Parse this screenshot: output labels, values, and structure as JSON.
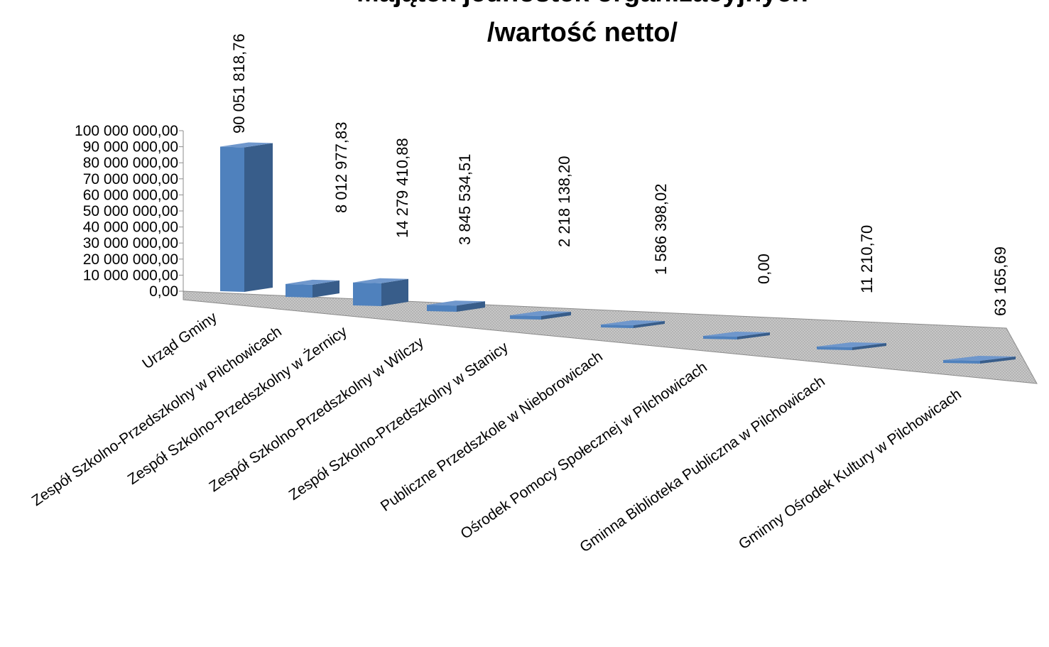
{
  "chart_data": {
    "type": "bar",
    "title_lines": [
      "Majątek jednostek organizacyjnych",
      "/wartość netto/"
    ],
    "xlabel": "",
    "ylabel": "",
    "ylim": [
      0,
      100000000
    ],
    "yticks": [
      "0,00",
      "10 000 000,00",
      "20 000 000,00",
      "30 000 000,00",
      "40 000 000,00",
      "50 000 000,00",
      "60 000 000,00",
      "70 000 000,00",
      "80 000 000,00",
      "90 000 000,00",
      "100 000 000,00"
    ],
    "ytick_values": [
      0,
      10000000,
      20000000,
      30000000,
      40000000,
      50000000,
      60000000,
      70000000,
      80000000,
      90000000,
      100000000
    ],
    "categories": [
      "Urząd Gminy",
      "Zespół Szkolno-Przedszkolny w Pilchowicach",
      "Zespół Szkolno-Przedszkolny w Żernicy",
      "Zespół Szkolno-Przedszkolny w Wilczy",
      "Zespół Szkolno-Przedszkolny w Stanicy",
      "Publiczne Przedszkole w Nieborowicach",
      "Ośrodek Pomocy Społecznej w Pilchowicach",
      "Gminna Biblioteka Publiczna w Pilchowicach",
      "Gminny Ośrodek Kultury w Pilchowicach"
    ],
    "values": [
      90051818.76,
      8012977.83,
      14279410.88,
      3845534.51,
      2218138.2,
      1586398.02,
      0.0,
      11210.7,
      63165.69
    ],
    "data_labels": [
      "90 051 818,76",
      "8 012 977,83",
      "14 279 410,88",
      "3 845 534,51",
      "2 218 138,20",
      "1 586 398,02",
      "0,00",
      "11 210,70",
      "63 165,69"
    ],
    "style": "3d-column",
    "grid": false,
    "legend": "none",
    "colors": {
      "bar_front": "#4f81bd",
      "bar_side": "#385d8a",
      "bar_top": "#6f97cc",
      "floor": "#c0c0c0"
    }
  }
}
